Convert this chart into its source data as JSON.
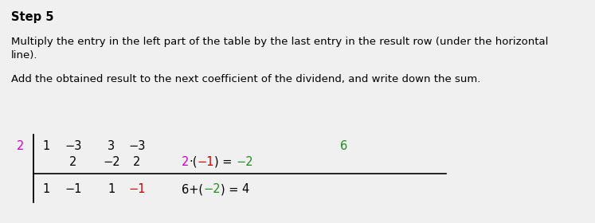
{
  "title": "Step 5",
  "para1": "Multiply the entry in the left part of the table by the last entry in the result row (under the horizontal",
  "para1b": "line).",
  "para2": "Add the obtained result to the next coefficient of the dividend, and write down the sum.",
  "bg_color": "#f0f0f0",
  "text_color": "#000000",
  "magenta_color": "#cc00cc",
  "red_color": "#cc0000",
  "green_color": "#228B22",
  "divisor": "2",
  "font_size_title": 10.5,
  "font_size_body": 9.5,
  "font_size_table": 10.5
}
